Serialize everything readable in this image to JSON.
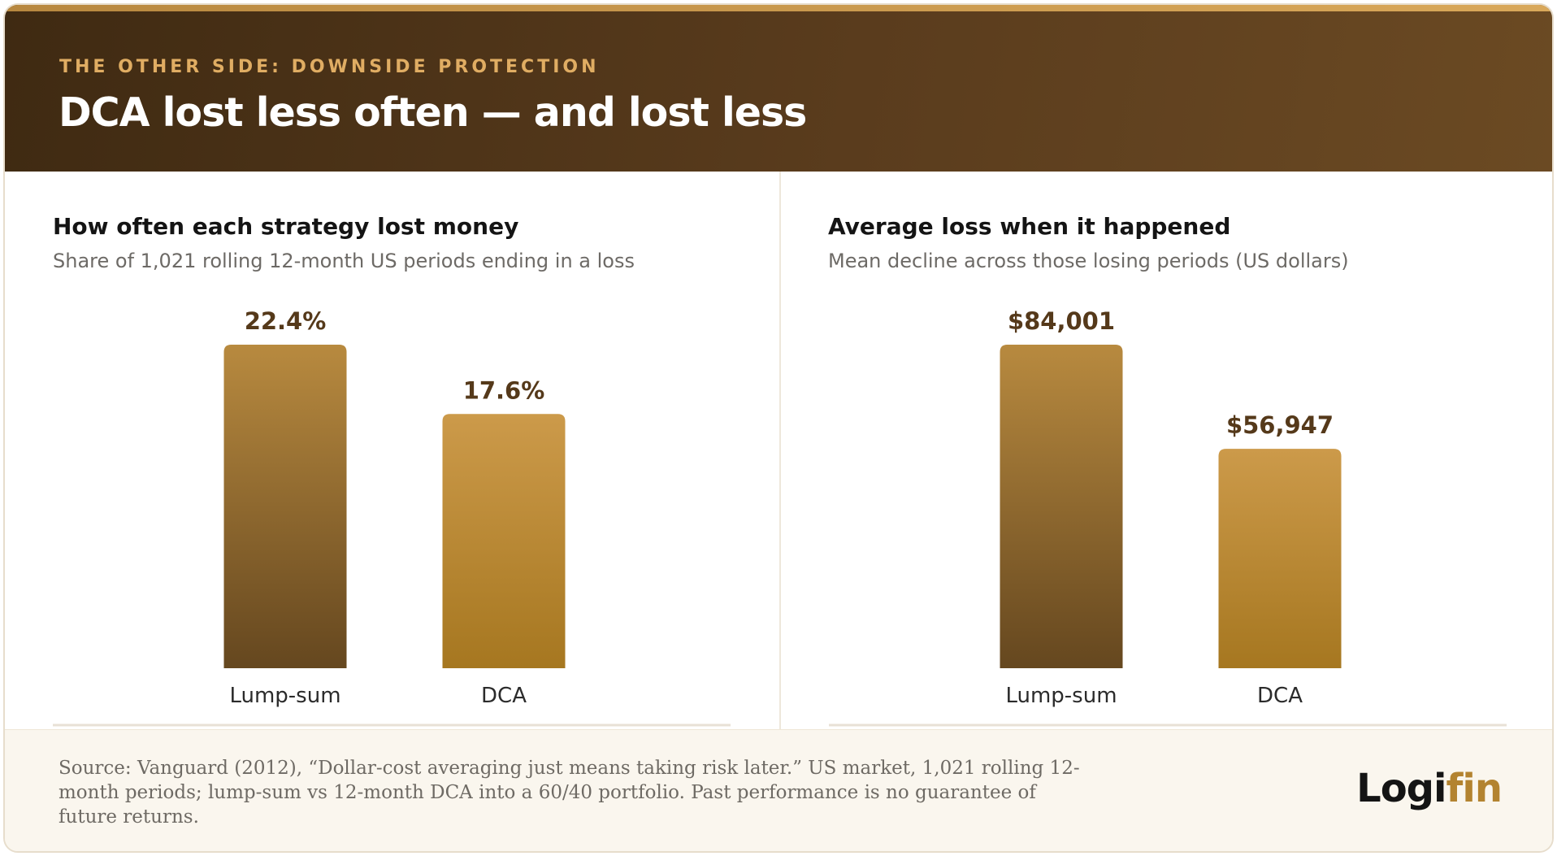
{
  "header": {
    "kicker": "THE OTHER SIDE: DOWNSIDE PROTECTION",
    "title": "DCA lost less often — and lost less"
  },
  "colors": {
    "lump_top": "#b88a3f",
    "lump_bottom": "#65471f",
    "dca_top": "#cc9a4a",
    "dca_bottom": "#a67720",
    "label": "#55391a",
    "axis": "#e8e1d6"
  },
  "chart_data": [
    {
      "type": "bar",
      "title": "How often each strategy lost money",
      "subtitle": "Share of 1,021 rolling 12-month US periods ending in a loss",
      "categories": [
        "Lump-sum",
        "DCA"
      ],
      "values": [
        22.4,
        17.6
      ],
      "value_labels": [
        "22.4%",
        "17.6%"
      ],
      "unit": "%",
      "xlabel": "",
      "ylabel": "",
      "grid": false,
      "legend": "none"
    },
    {
      "type": "bar",
      "title": "Average loss when it happened",
      "subtitle": "Mean decline across those losing periods (US dollars)",
      "categories": [
        "Lump-sum",
        "DCA"
      ],
      "values": [
        84001,
        56947
      ],
      "value_labels": [
        "$84,001",
        "$56,947"
      ],
      "unit": "US dollars",
      "xlabel": "",
      "ylabel": "",
      "grid": false,
      "legend": "none"
    }
  ],
  "footer": {
    "source": "Source: Vanguard (2012), “Dollar-cost averaging just means taking risk later.” US market, 1,021 rolling 12-month periods; lump-sum vs 12-month DCA into a 60/40 portfolio. Past performance is no guarantee of future returns.",
    "logo_main": "Logi",
    "logo_accent": "fin"
  }
}
